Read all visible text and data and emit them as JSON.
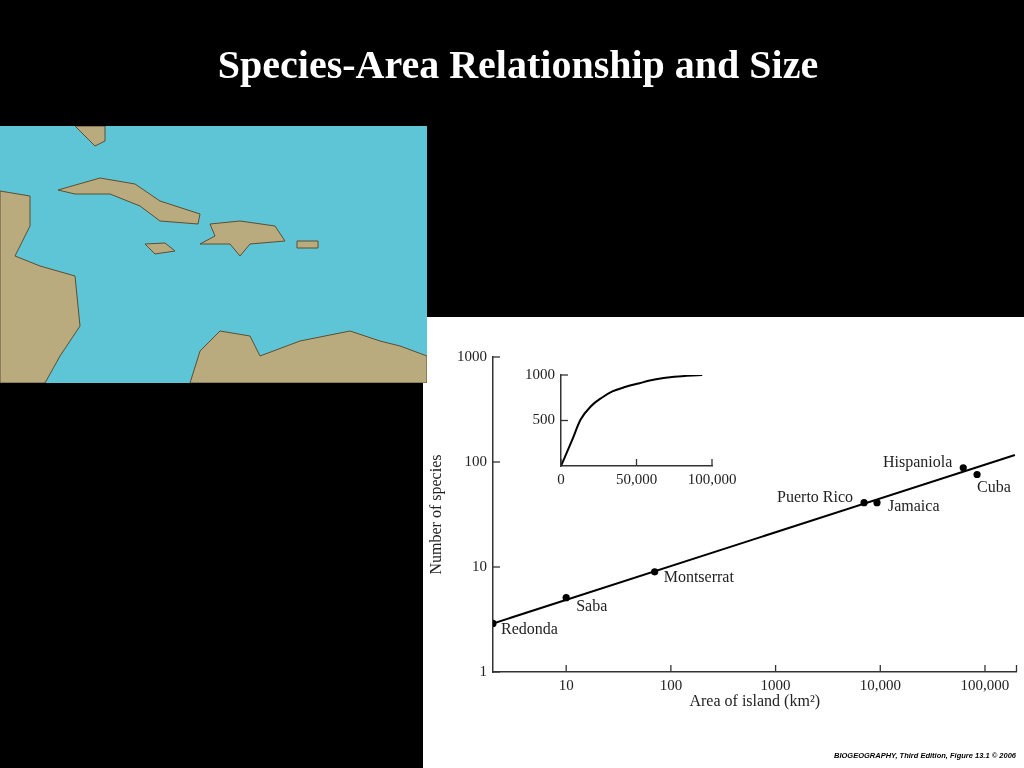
{
  "chart_data": [
    {
      "type": "scatter",
      "title": "Species-Area Relationship and Size",
      "xlabel": "Area of island (km²)",
      "ylabel": "Number of species",
      "log": "xy",
      "xlim": [
        2,
        200000
      ],
      "ylim": [
        1,
        1000
      ],
      "xticks": [
        10,
        100,
        1000,
        {
          "value": 10000,
          "label": "10,000"
        },
        {
          "value": 100000,
          "label": "100,000"
        },
        {
          "value": 200000,
          "label": null
        }
      ],
      "yticks": [
        1,
        10,
        100,
        1000
      ],
      "series": [
        {
          "type": "scatter",
          "color": "#000000",
          "marker": "circle",
          "x": [
            2,
            10,
            70,
            7000,
            9300,
            62000,
            84000
          ],
          "values": [
            2.9,
            5.1,
            9,
            41,
            41,
            88,
            76
          ]
        },
        {
          "type": "line",
          "color": "#000000",
          "x": [
            2,
            190000
          ],
          "values": [
            2.9,
            116
          ]
        }
      ],
      "annotations": [
        {
          "text": "Redonda",
          "x": 2,
          "y": 2.9
        },
        {
          "text": "Saba",
          "x": 10,
          "y": 5.1
        },
        {
          "text": "Montserrat",
          "x": 70,
          "y": 9
        },
        {
          "text": "Puerto Rico",
          "x": 7000,
          "y": 41
        },
        {
          "text": "Jamaica",
          "x": 9300,
          "y": 41
        },
        {
          "text": "Hispaniola",
          "x": 62000,
          "y": 88
        },
        {
          "text": "Cuba",
          "x": 84000,
          "y": 76
        },
        "BIOGEOGRAPHY, Third Edition, Figure 13.1 © 2006"
      ]
    },
    {
      "type": "line",
      "x": [
        0,
        7000,
        13000,
        20000,
        27000,
        34000,
        43000,
        52000,
        62000,
        75000,
        93000
      ],
      "series": [
        {
          "color": "#000000",
          "values": [
            0,
            270,
            510,
            660,
            750,
            820,
            870,
            910,
            950,
            980,
            1000
          ]
        }
      ],
      "xlim": [
        0,
        100000
      ],
      "ylim": [
        0,
        1000
      ],
      "xticks": [
        0,
        {
          "value": 50000,
          "label": "50,000"
        },
        {
          "value": 100000,
          "label": "100,000"
        }
      ],
      "yticks": [
        500,
        1000
      ]
    }
  ]
}
